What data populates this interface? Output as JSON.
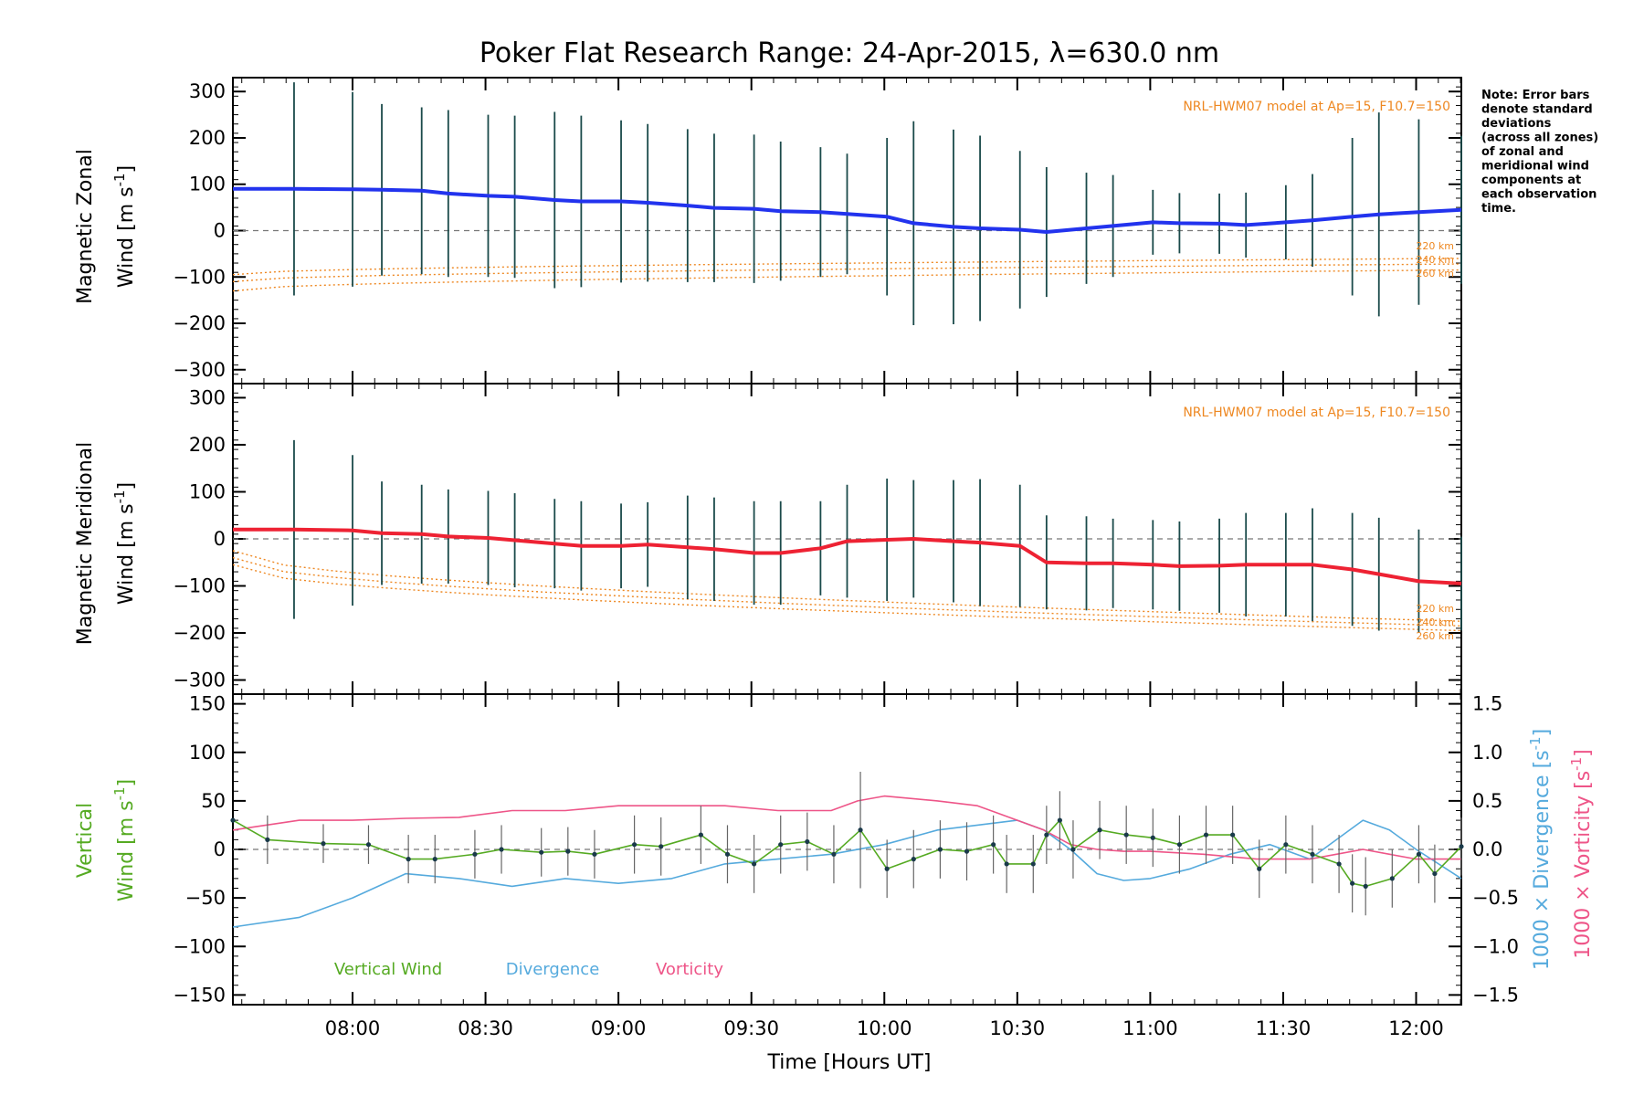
{
  "title": "Poker Flat Research Range: 24-Apr-2015, λ=630.0 nm",
  "xlabel": "Time [Hours UT]",
  "x_ticks": [
    "08:00",
    "08:30",
    "09:00",
    "09:30",
    "10:00",
    "10:30",
    "11:00",
    "11:30",
    "12:00"
  ],
  "note_lines": [
    "Note: Error bars",
    "denote standard",
    "deviations",
    "(across all zones)",
    "of zonal and",
    "meridional wind",
    "components at",
    "each observation",
    "time."
  ],
  "model_label": "NRL-HWM07 model at Ap=15, F10.7=150",
  "altitude_labels": [
    "220 km",
    "240 km",
    "260 km"
  ],
  "colors": {
    "zonal": "#2233ee",
    "meridional": "#ee2233",
    "vertical": "#55aa22",
    "divergence": "#55aadd",
    "vorticity": "#ee5588",
    "model": "#ee8822",
    "zone_blue": "#9999dd"
  },
  "panels": {
    "zonal": {
      "ylabel_1": "Magnetic Zonal",
      "ylabel_2": "Wind [m s",
      "ylabel_sup": "-1",
      "ylabel_end": "]",
      "y_ticks": [
        "300",
        "200",
        "100",
        "0",
        "−100",
        "−200",
        "−300"
      ]
    },
    "meridional": {
      "ylabel_1": "Magnetic Meridional",
      "ylabel_2": "Wind [m s",
      "ylabel_sup": "-1",
      "ylabel_end": "]",
      "y_ticks": [
        "300",
        "200",
        "100",
        "0",
        "−100",
        "−200",
        "−300"
      ]
    },
    "vertical": {
      "ylabel_1": "Vertical",
      "ylabel_2": "Wind [m s",
      "ylabel_sup": "-1",
      "ylabel_end": "]",
      "y_ticks": [
        "150",
        "100",
        "50",
        "0",
        "−50",
        "−100",
        "−150"
      ],
      "right_ticks": [
        "1.5",
        "1.0",
        "0.5",
        "0.0",
        "−0.5",
        "−1.0",
        "−1.5"
      ],
      "right_label_div": "1000 × Divergence [s",
      "right_label_vort": "1000 × Vorticity [s",
      "right_label_sup": "-1",
      "right_label_end": "]",
      "legend": [
        "Vertical Wind",
        "Divergence",
        "Vorticity"
      ]
    }
  },
  "chart_data": [
    {
      "type": "line",
      "name": "zonal",
      "x_range_hours": [
        7.55,
        12.17
      ],
      "ylim": [
        -330,
        330
      ],
      "x": [
        7.55,
        7.78,
        8.0,
        8.11,
        8.26,
        8.36,
        8.51,
        8.61,
        8.76,
        8.86,
        9.01,
        9.11,
        9.26,
        9.36,
        9.51,
        9.61,
        9.76,
        9.86,
        10.01,
        10.11,
        10.26,
        10.36,
        10.51,
        10.61,
        10.76,
        10.86,
        11.01,
        11.11,
        11.26,
        11.36,
        11.51,
        11.61,
        11.76,
        11.86,
        12.01,
        12.17
      ],
      "y": [
        90,
        90,
        89,
        88,
        86,
        80,
        75,
        73,
        66,
        63,
        63,
        60,
        54,
        49,
        47,
        42,
        40,
        36,
        30,
        16,
        8,
        5,
        2,
        -3,
        5,
        10,
        18,
        16,
        15,
        12,
        18,
        22,
        30,
        35,
        40,
        45
      ],
      "error": [
        0,
        230,
        210,
        185,
        180,
        180,
        175,
        175,
        190,
        185,
        175,
        170,
        165,
        160,
        160,
        150,
        140,
        130,
        170,
        220,
        210,
        200,
        170,
        140,
        120,
        110,
        70,
        65,
        65,
        70,
        80,
        100,
        170,
        220,
        200,
        160
      ]
    },
    {
      "type": "line",
      "name": "meridional",
      "x_range_hours": [
        7.55,
        12.17
      ],
      "ylim": [
        -330,
        330
      ],
      "x": [
        7.55,
        7.78,
        8.0,
        8.11,
        8.26,
        8.36,
        8.51,
        8.61,
        8.76,
        8.86,
        9.01,
        9.11,
        9.26,
        9.36,
        9.51,
        9.61,
        9.76,
        9.86,
        10.01,
        10.11,
        10.26,
        10.36,
        10.51,
        10.61,
        10.76,
        10.86,
        11.01,
        11.11,
        11.26,
        11.36,
        11.51,
        11.61,
        11.76,
        11.86,
        12.01,
        12.17
      ],
      "y": [
        20,
        20,
        18,
        12,
        10,
        5,
        2,
        -3,
        -10,
        -15,
        -15,
        -12,
        -18,
        -22,
        -30,
        -30,
        -20,
        -5,
        -2,
        0,
        -5,
        -8,
        -15,
        -50,
        -52,
        -52,
        -55,
        -58,
        -57,
        -55,
        -55,
        -55,
        -65,
        -75,
        -90,
        -95
      ],
      "error": [
        0,
        190,
        160,
        110,
        105,
        100,
        100,
        100,
        95,
        95,
        90,
        90,
        110,
        110,
        110,
        110,
        100,
        120,
        130,
        125,
        130,
        135,
        130,
        100,
        100,
        95,
        95,
        95,
        100,
        110,
        110,
        120,
        120,
        120,
        110,
        100
      ]
    },
    {
      "type": "line",
      "name": "vertical",
      "ylim": [
        -160,
        160
      ],
      "x": [
        7.55,
        7.68,
        7.89,
        8.06,
        8.21,
        8.31,
        8.46,
        8.56,
        8.71,
        8.81,
        8.91,
        9.06,
        9.16,
        9.31,
        9.41,
        9.51,
        9.61,
        9.71,
        9.81,
        9.91,
        10.01,
        10.11,
        10.21,
        10.31,
        10.41,
        10.46,
        10.56,
        10.61,
        10.66,
        10.71,
        10.81,
        10.91,
        11.01,
        11.11,
        11.21,
        11.31,
        11.41,
        11.51,
        11.61,
        11.71,
        11.76,
        11.81,
        11.91,
        12.01,
        12.07,
        12.17
      ],
      "y": [
        30,
        10,
        6,
        5,
        -10,
        -10,
        -5,
        0,
        -3,
        -2,
        -5,
        5,
        3,
        15,
        -5,
        -15,
        5,
        8,
        -5,
        20,
        -20,
        -10,
        0,
        -2,
        5,
        -15,
        -15,
        15,
        30,
        0,
        20,
        15,
        12,
        5,
        15,
        15,
        -20,
        5,
        -5,
        -15,
        -35,
        -38,
        -30,
        -5,
        -25,
        3
      ],
      "error": [
        0,
        25,
        20,
        20,
        25,
        25,
        25,
        25,
        25,
        25,
        25,
        30,
        30,
        30,
        30,
        30,
        30,
        30,
        30,
        60,
        30,
        30,
        30,
        30,
        30,
        30,
        30,
        30,
        30,
        30,
        30,
        30,
        30,
        30,
        30,
        30,
        30,
        30,
        30,
        30,
        30,
        30,
        30,
        30,
        30,
        30
      ]
    },
    {
      "type": "line",
      "name": "divergence",
      "ylim": [
        -1.6,
        1.6
      ],
      "x": [
        7.55,
        7.8,
        8.0,
        8.2,
        8.4,
        8.6,
        8.8,
        9.0,
        9.2,
        9.4,
        9.6,
        9.8,
        10.0,
        10.2,
        10.35,
        10.5,
        10.6,
        10.7,
        10.8,
        10.9,
        11.0,
        11.15,
        11.3,
        11.45,
        11.6,
        11.7,
        11.8,
        11.9,
        12.0,
        12.17
      ],
      "y": [
        -0.8,
        -0.7,
        -0.5,
        -0.25,
        -0.3,
        -0.38,
        -0.3,
        -0.35,
        -0.3,
        -0.15,
        -0.1,
        -0.05,
        0.05,
        0.2,
        0.25,
        0.3,
        0.2,
        0.0,
        -0.25,
        -0.32,
        -0.3,
        -0.2,
        -0.05,
        0.05,
        -0.1,
        0.1,
        0.3,
        0.2,
        0.0,
        -0.3
      ]
    },
    {
      "type": "line",
      "name": "vorticity",
      "ylim": [
        -1.6,
        1.6
      ],
      "x": [
        7.55,
        7.8,
        8.0,
        8.2,
        8.4,
        8.6,
        8.8,
        9.0,
        9.2,
        9.4,
        9.6,
        9.8,
        9.9,
        10.0,
        10.2,
        10.35,
        10.5,
        10.6,
        10.7,
        10.8,
        10.9,
        11.0,
        11.2,
        11.4,
        11.5,
        11.6,
        11.7,
        11.8,
        11.9,
        12.0,
        12.17
      ],
      "y": [
        0.2,
        0.3,
        0.3,
        0.32,
        0.33,
        0.4,
        0.4,
        0.45,
        0.45,
        0.45,
        0.4,
        0.4,
        0.5,
        0.55,
        0.5,
        0.45,
        0.3,
        0.2,
        0.05,
        0.0,
        -0.02,
        -0.02,
        -0.05,
        -0.1,
        -0.1,
        -0.1,
        -0.05,
        0.0,
        -0.05,
        -0.1,
        -0.1
      ]
    }
  ]
}
